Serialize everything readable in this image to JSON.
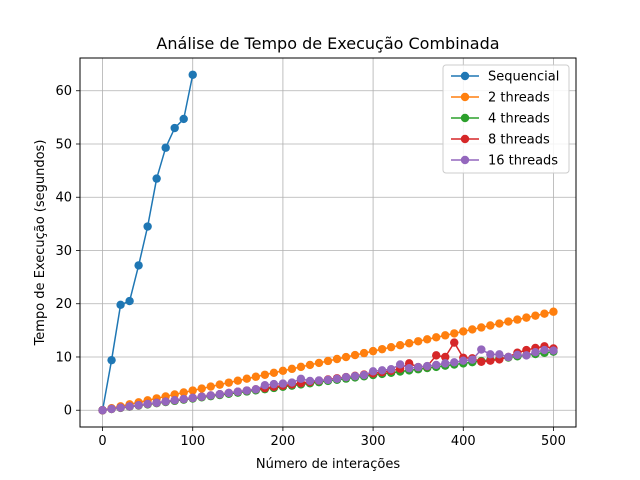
{
  "chart_data": {
    "type": "line",
    "title": "Análise de Tempo de Execução Combinada",
    "xlabel": "Número de interações",
    "ylabel": "Tempo de Execução (segundos)",
    "xlim": [
      -25,
      525
    ],
    "ylim": [
      -3.15,
      66.15
    ],
    "xticks": [
      0,
      100,
      200,
      300,
      400,
      500
    ],
    "yticks": [
      0,
      10,
      20,
      30,
      40,
      50,
      60
    ],
    "grid": true,
    "legend_position": "top-right",
    "series": [
      {
        "name": "Sequencial",
        "color": "#1f77b4",
        "x": [
          0,
          10,
          20,
          30,
          40,
          50,
          60,
          70,
          80,
          90,
          100
        ],
        "y": [
          0,
          9.4,
          19.8,
          20.5,
          27.2,
          34.5,
          43.5,
          49.3,
          53.0,
          54.7,
          63.0
        ]
      },
      {
        "name": "2 threads",
        "color": "#ff7f0e",
        "x": [
          0,
          10,
          20,
          30,
          40,
          50,
          60,
          70,
          80,
          90,
          100,
          110,
          120,
          130,
          140,
          150,
          160,
          170,
          180,
          190,
          200,
          210,
          220,
          230,
          240,
          250,
          260,
          270,
          280,
          290,
          300,
          310,
          320,
          330,
          340,
          350,
          360,
          370,
          380,
          390,
          400,
          410,
          420,
          430,
          440,
          450,
          460,
          470,
          480,
          490,
          500
        ],
        "y": [
          0,
          0.37,
          0.74,
          1.11,
          1.48,
          1.85,
          2.22,
          2.59,
          2.96,
          3.33,
          3.7,
          4.07,
          4.44,
          4.81,
          5.18,
          5.55,
          5.92,
          6.29,
          6.66,
          7.03,
          7.4,
          7.77,
          8.14,
          8.51,
          8.88,
          9.25,
          9.62,
          9.99,
          10.36,
          10.73,
          11.1,
          11.47,
          11.84,
          12.21,
          12.58,
          12.95,
          13.32,
          13.69,
          14.06,
          14.43,
          14.8,
          15.17,
          15.54,
          15.91,
          16.28,
          16.65,
          17.02,
          17.39,
          17.76,
          18.13,
          18.5
        ]
      },
      {
        "name": "4 threads",
        "color": "#2ca02c",
        "x": [
          0,
          10,
          20,
          30,
          40,
          50,
          60,
          70,
          80,
          90,
          100,
          110,
          120,
          130,
          140,
          150,
          160,
          170,
          180,
          190,
          200,
          210,
          220,
          230,
          240,
          250,
          260,
          270,
          280,
          290,
          300,
          310,
          320,
          330,
          340,
          350,
          360,
          370,
          380,
          390,
          400,
          410,
          420,
          430,
          440,
          450,
          460,
          470,
          480,
          490,
          500
        ],
        "y": [
          0,
          0.22,
          0.44,
          0.66,
          0.88,
          1.1,
          1.32,
          1.54,
          1.76,
          1.98,
          2.2,
          2.42,
          2.64,
          2.86,
          3.08,
          3.3,
          3.52,
          3.74,
          3.96,
          4.18,
          4.4,
          4.62,
          4.84,
          5.06,
          5.28,
          5.5,
          5.72,
          5.94,
          6.16,
          6.38,
          6.6,
          6.82,
          7.04,
          7.26,
          7.48,
          7.7,
          7.92,
          8.14,
          8.36,
          8.58,
          8.8,
          9.02,
          9.24,
          9.46,
          9.68,
          9.9,
          10.12,
          10.34,
          10.56,
          10.78,
          11.0
        ]
      },
      {
        "name": "8 threads",
        "color": "#d62728",
        "x": [
          0,
          10,
          20,
          30,
          40,
          50,
          60,
          70,
          80,
          90,
          100,
          110,
          120,
          130,
          140,
          150,
          160,
          170,
          180,
          190,
          200,
          210,
          220,
          230,
          240,
          250,
          260,
          270,
          280,
          290,
          300,
          310,
          320,
          330,
          340,
          350,
          360,
          370,
          380,
          390,
          400,
          410,
          420,
          430,
          440,
          450,
          460,
          470,
          480,
          490,
          500
        ],
        "y": [
          0,
          0.25,
          0.48,
          0.72,
          0.95,
          1.18,
          1.4,
          1.63,
          1.88,
          2.1,
          2.32,
          2.55,
          2.78,
          3.0,
          3.25,
          3.48,
          3.7,
          3.93,
          4.15,
          4.4,
          4.62,
          4.85,
          5.08,
          5.3,
          5.55,
          5.78,
          6.0,
          6.23,
          6.45,
          6.7,
          6.92,
          7.15,
          7.4,
          7.8,
          8.8,
          8.1,
          8.25,
          10.3,
          10.0,
          12.7,
          9.85,
          9.75,
          9.1,
          9.3,
          9.55,
          10.0,
          10.8,
          11.3,
          11.7,
          12.0,
          11.6
        ]
      },
      {
        "name": "16 threads",
        "color": "#9467bd",
        "x": [
          0,
          10,
          20,
          30,
          40,
          50,
          60,
          70,
          80,
          90,
          100,
          110,
          120,
          130,
          140,
          150,
          160,
          170,
          180,
          190,
          200,
          210,
          220,
          230,
          240,
          250,
          260,
          270,
          280,
          290,
          300,
          310,
          320,
          330,
          340,
          350,
          360,
          370,
          380,
          390,
          400,
          410,
          420,
          430,
          440,
          450,
          460,
          470,
          480,
          490,
          500
        ],
        "y": [
          0,
          0.25,
          0.48,
          0.72,
          0.95,
          1.18,
          1.4,
          1.63,
          1.88,
          2.1,
          2.32,
          2.55,
          2.78,
          3.0,
          3.25,
          3.48,
          3.7,
          3.93,
          4.7,
          4.9,
          5.0,
          5.2,
          5.9,
          5.5,
          5.6,
          5.7,
          5.9,
          6.2,
          6.4,
          6.6,
          7.3,
          7.5,
          7.7,
          8.6,
          7.9,
          8.1,
          8.3,
          8.5,
          8.8,
          9.0,
          9.3,
          9.5,
          11.4,
          10.5,
          10.5,
          10.0,
          10.4,
          10.3,
          10.9,
          11.3,
          11.2
        ]
      }
    ]
  }
}
